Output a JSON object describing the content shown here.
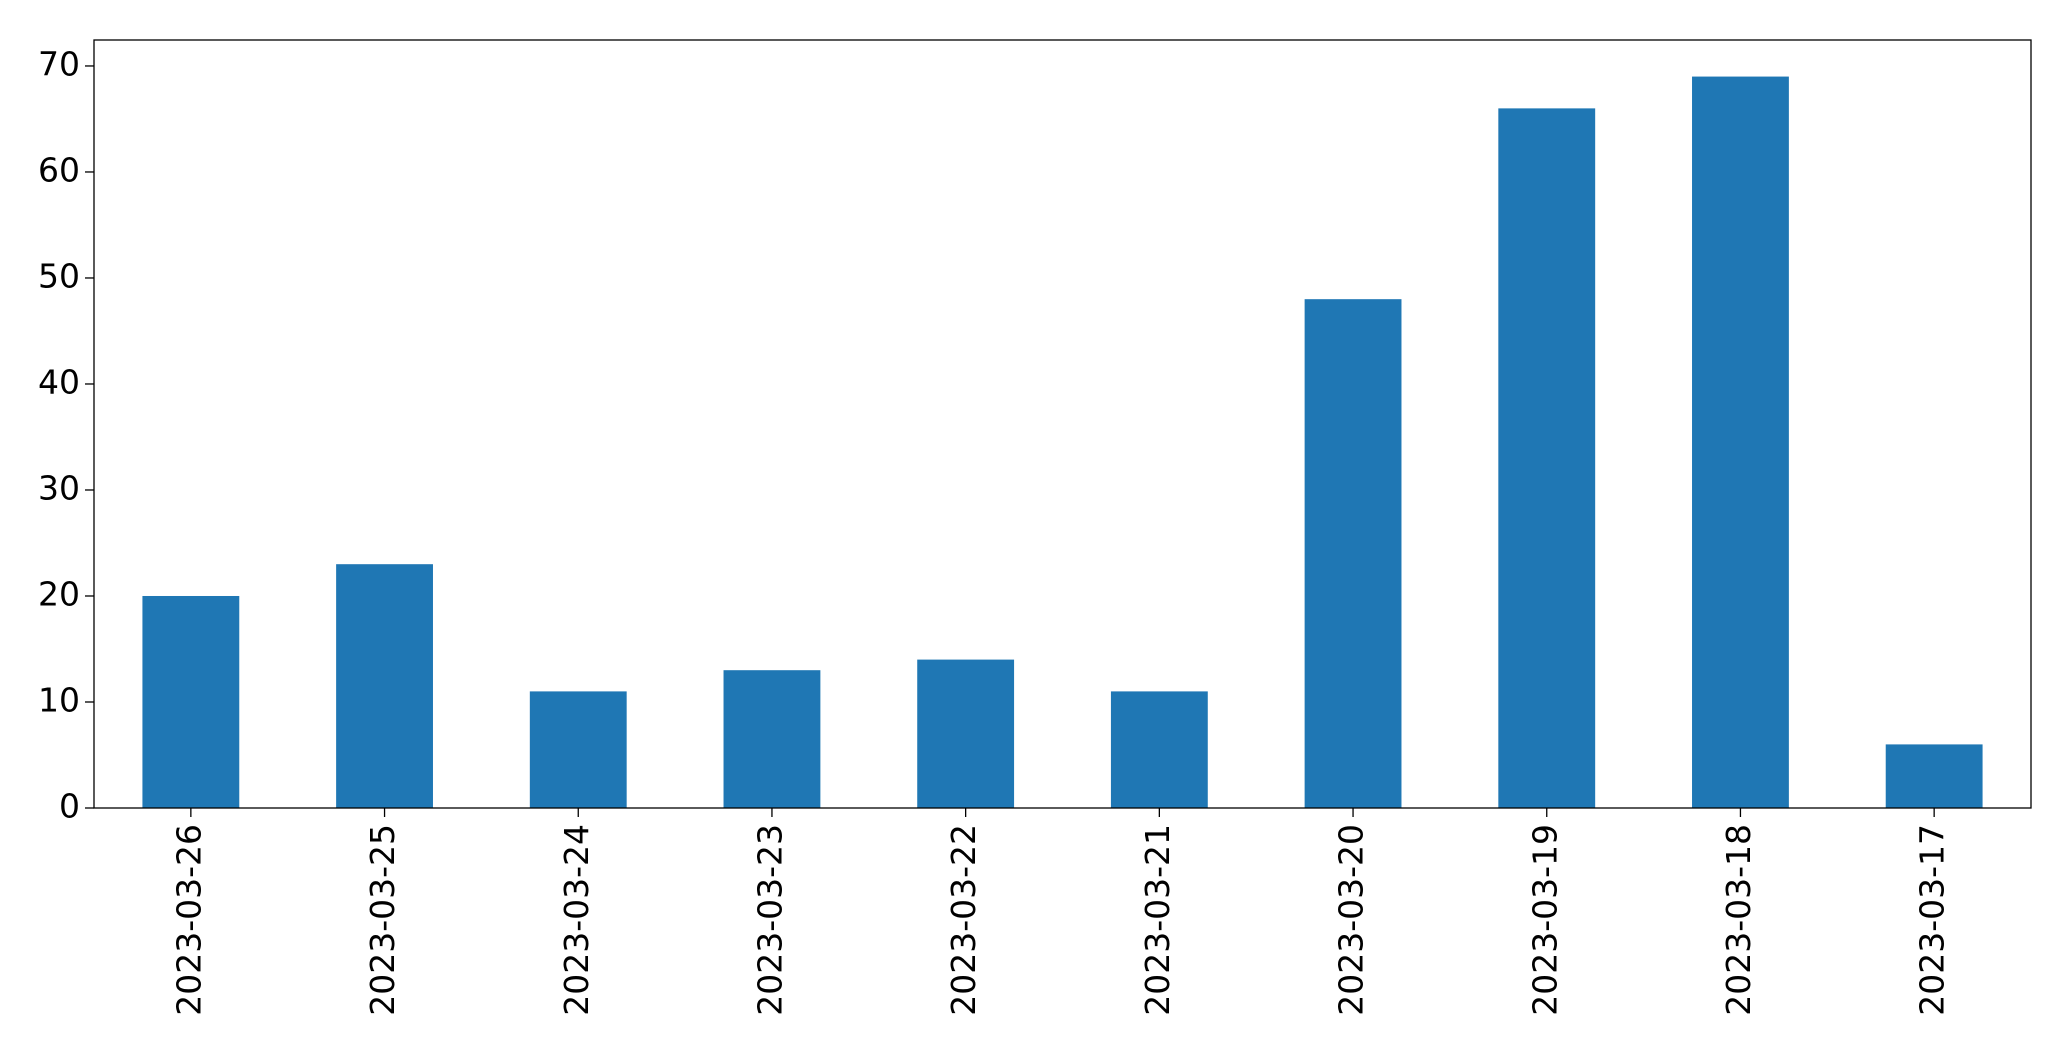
{
  "chart_data": {
    "type": "bar",
    "categories": [
      "2023-03-26",
      "2023-03-25",
      "2023-03-24",
      "2023-03-23",
      "2023-03-22",
      "2023-03-21",
      "2023-03-20",
      "2023-03-19",
      "2023-03-18",
      "2023-03-17"
    ],
    "values": [
      20,
      23,
      11,
      13,
      14,
      11,
      48,
      66,
      69,
      6
    ],
    "color": "#1f77b4",
    "ylim": [
      0,
      72.45
    ],
    "yticks": [
      0,
      10,
      20,
      30,
      40,
      50,
      60,
      70
    ],
    "grid": false
  }
}
